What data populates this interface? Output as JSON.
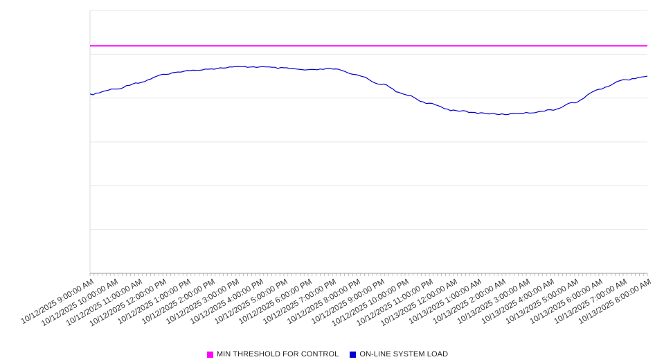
{
  "chart_data": {
    "type": "line",
    "title": "",
    "xlabel": "",
    "ylabel": "",
    "ylim": [
      0,
      100
    ],
    "grid": true,
    "legend_position": "bottom",
    "grid_color": "#e7e7e7",
    "axis_color": "#999999",
    "label_color": "#333333",
    "x_labels": [
      "10/12/2025 9:00:00 AM",
      "10/12/2025 10:00:00 AM",
      "10/12/2025 11:00:00 AM",
      "10/12/2025 12:00:00 PM",
      "10/12/2025 1:00:00 PM",
      "10/12/2025 2:00:00 PM",
      "10/12/2025 3:00:00 PM",
      "10/12/2025 4:00:00 PM",
      "10/12/2025 5:00:00 PM",
      "10/12/2025 6:00:00 PM",
      "10/12/2025 7:00:00 PM",
      "10/12/2025 8:00:00 PM",
      "10/12/2025 9:00:00 PM",
      "10/12/2025 10:00:00 PM",
      "10/12/2025 11:00:00 PM",
      "10/13/2025 12:00:00 AM",
      "10/13/2025 1:00:00 AM",
      "10/13/2025 2:00:00 AM",
      "10/13/2025 3:00:00 AM",
      "10/13/2025 4:00:00 AM",
      "10/13/2025 5:00:00 AM",
      "10/13/2025 6:00:00 AM",
      "10/13/2025 7:00:00 AM",
      "10/13/2025 8:00:00 AM"
    ],
    "series": [
      {
        "name": "MIN THRESHOLD FOR CONTROL",
        "type": "threshold",
        "color": "#ff00ff",
        "value": 86.5
      },
      {
        "name": "ON-LINE SYSTEM LOAD",
        "type": "line",
        "color": "#0000cd",
        "values": [
          68,
          70,
          72.5,
          75.5,
          77,
          77.8,
          78.5,
          78.5,
          78,
          77.3,
          77.8,
          75.5,
          72,
          68,
          64.5,
          62,
          61,
          60.5,
          61,
          62,
          65,
          70,
          73.5,
          75
        ]
      }
    ]
  }
}
